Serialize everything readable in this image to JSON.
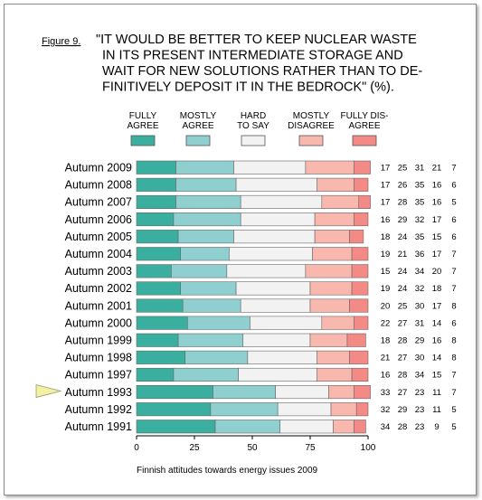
{
  "figure_label": "Figure 9.",
  "chart_data": {
    "type": "bar",
    "orientation": "horizontal",
    "stacked": true,
    "title_lines": [
      "\"IT WOULD BE BETTER TO KEEP NUCLEAR WASTE",
      "IN ITS PRESENT INTERMEDIATE STORAGE AND",
      "WAIT FOR NEW SOLUTIONS RATHER THAN TO DE-",
      "FINITIVELY DEPOSIT IT IN THE BEDROCK\" (%)."
    ],
    "categories": [
      "Autumn 2009",
      "Autumn 2008",
      "Autumn 2007",
      "Autumn 2006",
      "Autumn 2005",
      "Autumn 2004",
      "Autumn 2003",
      "Autumn 2002",
      "Autumn 2001",
      "Autumn 2000",
      "Autumn 1999",
      "Autumn 1998",
      "Autumn 1997",
      "Autumn 1993",
      "Autumn 1992",
      "Autumn 1991"
    ],
    "series": [
      {
        "name": "FULLY AGREE",
        "label_lines": [
          "FULLY",
          "AGREE"
        ],
        "color": "#3aaf9f",
        "values": [
          17,
          17,
          17,
          16,
          18,
          19,
          15,
          19,
          20,
          22,
          18,
          21,
          16,
          33,
          32,
          34
        ]
      },
      {
        "name": "MOSTLY AGREE",
        "label_lines": [
          "MOSTLY",
          "AGREE"
        ],
        "color": "#8fcfcf",
        "values": [
          25,
          26,
          28,
          29,
          24,
          21,
          24,
          24,
          25,
          27,
          28,
          27,
          28,
          27,
          29,
          28
        ]
      },
      {
        "name": "HARD TO SAY",
        "label_lines": [
          "HARD",
          "TO SAY"
        ],
        "color": "#f2f2f2",
        "values": [
          31,
          35,
          35,
          32,
          35,
          36,
          34,
          32,
          30,
          31,
          29,
          30,
          34,
          23,
          23,
          23
        ]
      },
      {
        "name": "MOSTLY DISAGREE",
        "label_lines": [
          "MOSTLY",
          "DISAGREE"
        ],
        "color": "#f9b8ae",
        "values": [
          21,
          16,
          16,
          17,
          15,
          17,
          20,
          18,
          17,
          14,
          16,
          14,
          15,
          11,
          11,
          9
        ]
      },
      {
        "name": "FULLY DISAGREE",
        "label_lines": [
          "FULLY DIS-",
          "AGREE"
        ],
        "color": "#f48a86",
        "values": [
          7,
          6,
          5,
          6,
          6,
          7,
          7,
          7,
          8,
          6,
          8,
          8,
          7,
          7,
          5,
          5
        ]
      }
    ],
    "xlim": [
      0,
      100
    ],
    "x_ticks": [
      0,
      25,
      50,
      75,
      100
    ],
    "marker_at_category": "Autumn 1993",
    "marker_color": "#f2f0a4",
    "source": "Finnish attitudes towards energy issues 2009"
  }
}
